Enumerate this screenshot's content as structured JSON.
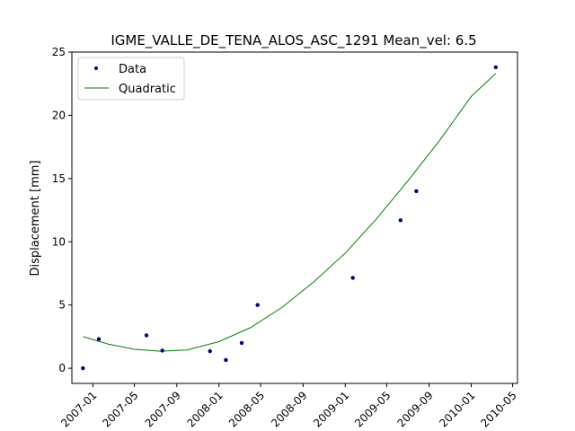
{
  "chart_data": {
    "type": "scatter",
    "title": "IGME_VALLE_DE_TENA_ALOS_ASC_1291     Mean_vel: 6.5",
    "xlabel": "",
    "ylabel": "Displacement [mm]",
    "xlim": [
      "2006-11-01",
      "2010-05-15"
    ],
    "ylim": [
      -1.2,
      25
    ],
    "x_ticks": [
      "2007-01",
      "2007-05",
      "2007-09",
      "2008-01",
      "2008-05",
      "2008-09",
      "2009-01",
      "2009-05",
      "2009-09",
      "2010-01",
      "2010-05"
    ],
    "y_ticks": [
      0,
      5,
      10,
      15,
      20,
      25
    ],
    "grid": false,
    "legend": {
      "placement": "top-left",
      "entries": [
        "Data",
        "Quadratic"
      ]
    },
    "colors": {
      "data": "#000080",
      "fit": "#008000"
    },
    "series": [
      {
        "name": "Data",
        "kind": "points",
        "x": [
          "2006-12-03",
          "2007-01-18",
          "2007-06-05",
          "2007-07-21",
          "2007-12-06",
          "2008-01-21",
          "2008-03-07",
          "2008-04-22",
          "2009-01-23",
          "2009-06-10",
          "2009-07-26",
          "2010-03-13"
        ],
        "y": [
          0.0,
          2.3,
          2.6,
          1.4,
          1.35,
          0.65,
          2.0,
          5.0,
          7.15,
          11.7,
          14.0,
          23.8
        ]
      },
      {
        "name": "Quadratic",
        "kind": "line",
        "x": [
          "2006-12-03",
          "2007-02-15",
          "2007-05-01",
          "2007-07-15",
          "2007-10-01",
          "2008-01-01",
          "2008-04-01",
          "2008-07-01",
          "2008-10-01",
          "2009-01-01",
          "2009-04-01",
          "2009-07-01",
          "2009-10-01",
          "2010-01-01",
          "2010-03-13"
        ],
        "y": [
          2.5,
          1.9,
          1.5,
          1.35,
          1.45,
          2.1,
          3.2,
          4.8,
          6.8,
          9.1,
          11.8,
          14.8,
          18.0,
          21.5,
          23.3
        ]
      }
    ]
  }
}
